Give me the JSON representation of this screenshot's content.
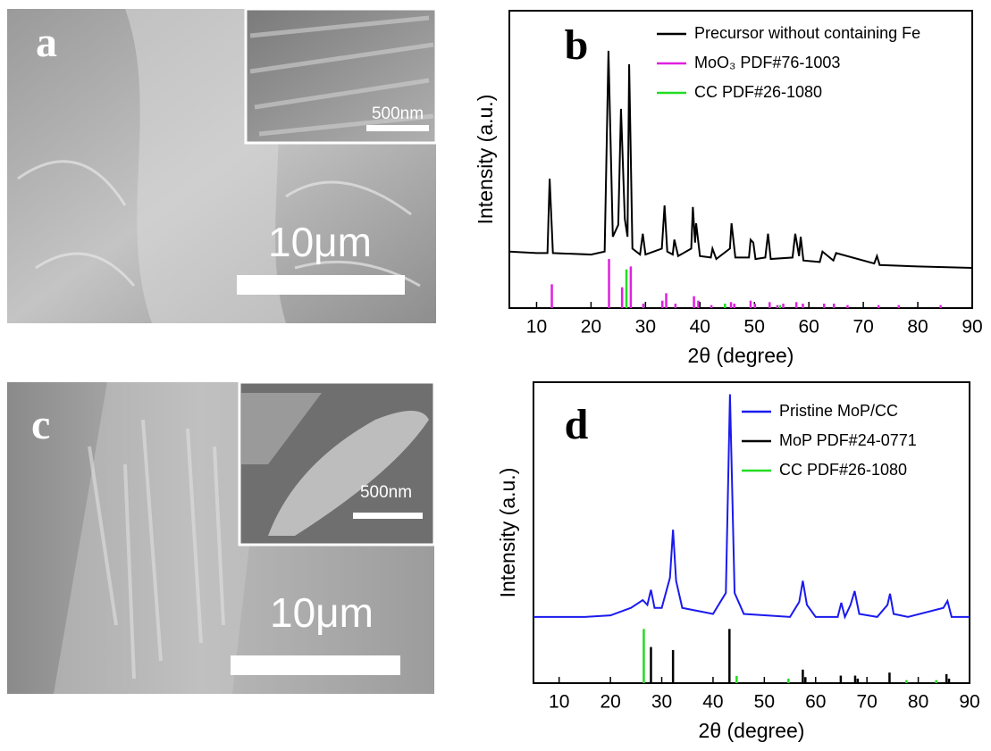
{
  "panels": [
    {
      "label": "a",
      "scale_bar": "10μm",
      "inset_scale_bar": "500nm"
    },
    {
      "label": "c",
      "scale_bar": "10μm",
      "inset_scale_bar": "500nm"
    }
  ],
  "chart_data": [
    {
      "type": "line",
      "panel_label": "b",
      "xlabel": "2θ (degree)",
      "ylabel": "Intensity (a.u.)",
      "xlim": [
        5,
        90
      ],
      "ylim": [
        0,
        100
      ],
      "xticks": [
        10,
        20,
        30,
        40,
        50,
        60,
        70,
        80,
        90
      ],
      "series": [
        {
          "name": "Precursor without containing Fe",
          "color": "#000000",
          "style": "line",
          "x": [
            5,
            10,
            12,
            12.4,
            13,
            20,
            22.5,
            23.2,
            24,
            25,
            25.5,
            26.2,
            26.7,
            27,
            27.6,
            29,
            29.5,
            30,
            33,
            33.5,
            34,
            35,
            35.3,
            36,
            38.4,
            38.7,
            39.1,
            39.3,
            40,
            42,
            42.3,
            43,
            45.5,
            45.8,
            46.5,
            49,
            49.3,
            49.8,
            50.2,
            52,
            52.5,
            53,
            57,
            57.5,
            58.2,
            58.5,
            59,
            62,
            62.5,
            64.5,
            65,
            72,
            72.5,
            73,
            80,
            90
          ],
          "values": [
            19,
            18.5,
            18.5,
            43.5,
            18.5,
            18,
            19,
            86.5,
            24,
            28,
            67,
            30,
            24,
            82,
            20,
            18,
            25,
            18,
            20,
            34.5,
            19,
            18,
            23,
            17.5,
            20,
            34,
            22,
            28.5,
            17.5,
            17,
            20,
            16.5,
            20,
            28.5,
            17,
            17,
            23,
            22,
            16.5,
            17,
            25,
            16.5,
            17,
            25,
            17.5,
            24,
            16,
            15.5,
            19,
            16,
            18.5,
            15,
            17.5,
            14.5,
            14,
            13.5
          ]
        },
        {
          "name": "MoO₃ PDF#76-1003",
          "color": "#e020e0",
          "style": "stick",
          "x": [
            12.8,
            23.3,
            25.7,
            27.3,
            29.6,
            33.1,
            33.8,
            35.5,
            38.9,
            39.7,
            42.1,
            45.7,
            46.3,
            49.3,
            50.1,
            52.8,
            54.2,
            55.3,
            57.7,
            58.9,
            62.8,
            64.6,
            67.1,
            72.8,
            76.5,
            84.2
          ],
          "values": [
            8,
            16.5,
            7,
            14,
            1.5,
            2.5,
            5,
            1.5,
            4,
            2.5,
            1,
            2,
            1.5,
            2.5,
            1.5,
            2,
            1,
            1.5,
            2,
            1.5,
            1.5,
            1.5,
            1,
            1,
            1,
            1
          ]
        },
        {
          "name": "CC PDF#26-1080",
          "color": "#22dd22",
          "style": "stick",
          "x": [
            26.5,
            44.6,
            54.7
          ],
          "values": [
            13,
            1.5,
            1
          ]
        }
      ]
    },
    {
      "type": "line",
      "panel_label": "d",
      "xlabel": "2θ (degree)",
      "ylabel": "Intensity (a.u.)",
      "xlim": [
        5,
        90
      ],
      "ylim": [
        0,
        100
      ],
      "xticks": [
        10,
        20,
        30,
        40,
        50,
        60,
        70,
        80,
        90
      ],
      "series": [
        {
          "name": "Pristine MoP/CC",
          "color": "#1a1aee",
          "style": "line",
          "x": [
            5,
            15,
            20,
            24,
            26.3,
            27.2,
            27.9,
            28.6,
            30,
            31.6,
            32.2,
            32.8,
            34,
            40,
            42.5,
            43.3,
            44.2,
            46,
            55,
            56.8,
            57.5,
            58.3,
            60,
            64.3,
            65,
            65.7,
            66.8,
            67.6,
            68.5,
            72,
            74,
            74.5,
            75.2,
            78,
            84.9,
            85.7,
            86.5,
            90
          ],
          "values": [
            22,
            22,
            22.5,
            25,
            27.6,
            26,
            31,
            25,
            25,
            35,
            51,
            34,
            25,
            23,
            30,
            96,
            30,
            23,
            22,
            27,
            34,
            26,
            22,
            22,
            26.7,
            22,
            26,
            30.6,
            23,
            22,
            26,
            29.7,
            23,
            22,
            25,
            27.3,
            22,
            22
          ]
        },
        {
          "name": "MoP PDF#24-0771",
          "color": "#000000",
          "style": "stick",
          "x": [
            27.9,
            32.2,
            43.2,
            57.5,
            58,
            64.9,
            67.7,
            68.2,
            74.4,
            85.5,
            86
          ],
          "values": [
            12,
            11,
            18,
            4.5,
            2,
            2.5,
            2.5,
            1.5,
            3.5,
            3,
            1.5
          ]
        },
        {
          "name": "CC PDF#26-1080",
          "color": "#22dd22",
          "style": "stick",
          "x": [
            26.5,
            44.6,
            54.7,
            77.7,
            83.5
          ],
          "values": [
            18,
            2.4,
            1.5,
            1,
            1
          ]
        }
      ]
    }
  ]
}
